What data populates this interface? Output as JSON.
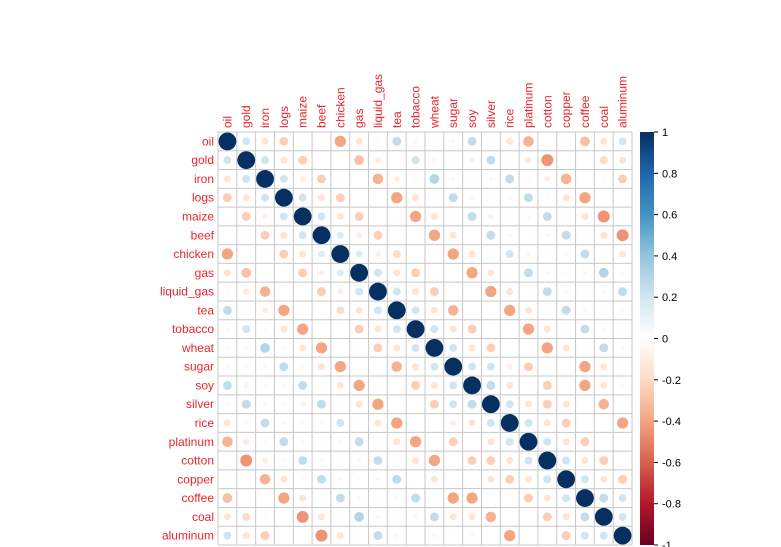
{
  "chart_data": {
    "type": "heatmap",
    "subtype": "correlation-circle",
    "title": "",
    "variables": [
      "oil",
      "gold",
      "iron",
      "logs",
      "maize",
      "beef",
      "chicken",
      "gas",
      "liquid_gas",
      "tea",
      "tobacco",
      "wheat",
      "sugar",
      "soy",
      "silver",
      "rice",
      "platinum",
      "cotton",
      "copper",
      "coffee",
      "coal",
      "aluminum"
    ],
    "upper_triangle": {
      "oil": {
        "gold": 0.2,
        "iron": -0.15,
        "logs": -0.25,
        "maize": 0.02,
        "beef": 0.0,
        "chicken": -0.4,
        "gas": -0.15,
        "liquid_gas": 0.03,
        "tea": 0.25,
        "tobacco": 0.05,
        "wheat": 0.03,
        "sugar": 0.05,
        "soy": 0.25,
        "silver": 0.03,
        "rice": -0.15,
        "platinum": -0.35,
        "cotton": 0.0,
        "copper": 0.02,
        "coffee": -0.3,
        "coal": -0.15,
        "aluminum": 0.2
      },
      "gold": {
        "iron": 0.2,
        "logs": -0.15,
        "maize": -0.25,
        "beef": 0.02,
        "chicken": 0.0,
        "gas": -0.3,
        "liquid_gas": -0.12,
        "tea": 0.02,
        "tobacco": 0.2,
        "wheat": 0.05,
        "sugar": 0.03,
        "soy": 0.08,
        "silver": 0.25,
        "rice": 0.03,
        "platinum": -0.12,
        "cotton": -0.45,
        "copper": 0.0,
        "coffee": 0.0,
        "coal": -0.2,
        "aluminum": -0.15
      },
      "iron": {
        "logs": 0.2,
        "maize": -0.1,
        "beef": -0.25,
        "chicken": 0.02,
        "gas": 0.0,
        "liquid_gas": -0.35,
        "tea": -0.1,
        "tobacco": 0.03,
        "wheat": 0.3,
        "sugar": 0.05,
        "soy": 0.03,
        "silver": 0.05,
        "rice": 0.25,
        "platinum": 0.03,
        "cotton": -0.1,
        "copper": -0.35,
        "coffee": 0.0,
        "coal": -0.03,
        "aluminum": -0.25
      },
      "logs": {
        "maize": 0.2,
        "beef": -0.15,
        "chicken": -0.25,
        "gas": 0.0,
        "liquid_gas": 0.0,
        "tea": -0.4,
        "tobacco": -0.15,
        "wheat": 0.03,
        "sugar": 0.25,
        "soy": 0.05,
        "silver": 0.03,
        "rice": 0.05,
        "platinum": 0.25,
        "cotton": 0.03,
        "copper": -0.15,
        "coffee": -0.4,
        "coal": 0.0,
        "aluminum": 0.0
      },
      "maize": {
        "beef": 0.2,
        "chicken": -0.15,
        "gas": -0.25,
        "liquid_gas": 0.0,
        "tea": 0.02,
        "tobacco": -0.4,
        "wheat": -0.15,
        "sugar": 0.03,
        "soy": 0.25,
        "silver": 0.08,
        "rice": 0.03,
        "platinum": 0.05,
        "cotton": 0.25,
        "copper": 0.03,
        "coffee": -0.15,
        "coal": -0.45,
        "aluminum": 0.0
      },
      "beef": {
        "chicken": 0.15,
        "gas": -0.1,
        "liquid_gas": -0.25,
        "tea": 0.0,
        "tobacco": 0.0,
        "wheat": -0.4,
        "sugar": -0.15,
        "soy": 0.02,
        "silver": 0.25,
        "rice": 0.05,
        "platinum": 0.02,
        "cotton": 0.05,
        "copper": 0.25,
        "coffee": 0.02,
        "coal": -0.15,
        "aluminum": -0.45
      },
      "chicken": {
        "gas": 0.15,
        "liquid_gas": -0.1,
        "tea": -0.2,
        "tobacco": 0.0,
        "wheat": 0.0,
        "sugar": -0.4,
        "soy": -0.15,
        "silver": 0.02,
        "rice": 0.2,
        "platinum": 0.05,
        "cotton": 0.02,
        "copper": 0.05,
        "coffee": 0.25,
        "coal": 0.02,
        "aluminum": -0.15
      },
      "gas": {
        "liquid_gas": 0.2,
        "tea": -0.15,
        "tobacco": -0.25,
        "wheat": 0.02,
        "sugar": 0.0,
        "soy": -0.4,
        "silver": -0.15,
        "rice": 0.02,
        "platinum": 0.25,
        "cotton": 0.05,
        "copper": 0.03,
        "coffee": 0.05,
        "coal": 0.3,
        "aluminum": 0.03
      },
      "liquid_gas": {
        "tea": 0.2,
        "tobacco": -0.15,
        "wheat": -0.25,
        "sugar": 0.0,
        "soy": 0.0,
        "silver": -0.4,
        "rice": -0.15,
        "platinum": 0.02,
        "cotton": 0.25,
        "copper": 0.05,
        "coffee": 0.02,
        "coal": 0.05,
        "aluminum": 0.25
      },
      "tea": {
        "tobacco": 0.2,
        "wheat": -0.15,
        "sugar": -0.35,
        "soy": 0.0,
        "silver": 0.0,
        "rice": -0.4,
        "platinum": -0.15,
        "cotton": 0.02,
        "copper": 0.25,
        "coffee": 0.05,
        "coal": 0.02,
        "aluminum": 0.05
      },
      "tobacco": {
        "wheat": 0.2,
        "sugar": -0.15,
        "soy": -0.25,
        "silver": 0.0,
        "rice": 0.0,
        "platinum": -0.4,
        "cotton": -0.15,
        "copper": 0.02,
        "coffee": 0.25,
        "coal": 0.05,
        "aluminum": 0.02
      },
      "wheat": {
        "sugar": 0.2,
        "soy": -0.15,
        "silver": -0.25,
        "rice": 0.0,
        "platinum": 0.0,
        "cotton": -0.4,
        "copper": -0.15,
        "coffee": 0.02,
        "coal": 0.25,
        "aluminum": 0.05
      },
      "sugar": {
        "soy": 0.2,
        "silver": 0.2,
        "rice": -0.1,
        "platinum": -0.25,
        "cotton": 0.0,
        "copper": 0.0,
        "coffee": -0.4,
        "coal": -0.15,
        "aluminum": 0.02
      },
      "soy": {
        "silver": 0.25,
        "rice": -0.15,
        "platinum": 0.02,
        "cotton": -0.25,
        "copper": 0.0,
        "coffee": -0.4,
        "coal": -0.15,
        "aluminum": 0.05
      },
      "silver": {
        "rice": 0.2,
        "platinum": -0.15,
        "cotton": -0.25,
        "copper": -0.15,
        "coffee": 0.0,
        "coal": -0.35,
        "aluminum": 0.0
      },
      "rice": {
        "platinum": 0.2,
        "cotton": -0.15,
        "copper": -0.25,
        "coffee": 0.0,
        "coal": 0.0,
        "aluminum": -0.4
      },
      "platinum": {
        "cotton": 0.2,
        "copper": -0.15,
        "coffee": -0.25,
        "coal": 0.0,
        "aluminum": 0.0
      },
      "cotton": {
        "copper": 0.2,
        "coffee": -0.15,
        "coal": -0.25,
        "aluminum": 0.0
      },
      "copper": {
        "coffee": 0.2,
        "coal": -0.15,
        "aluminum": -0.25
      },
      "coffee": {
        "coal": 0.25,
        "aluminum": 0.2
      },
      "coal": {
        "aluminum": 0.2
      }
    },
    "diagonal": 1,
    "colorbar": {
      "range": [
        -1,
        1
      ],
      "ticks": [
        "1",
        "0.8",
        "0.6",
        "0.4",
        "0.2",
        "0",
        "-0.2",
        "-0.4",
        "-0.6",
        "-0.8",
        "-1"
      ],
      "colors": {
        "neg_end": "#67001f",
        "neg_mid": "#d6604d",
        "zero": "#ffffff",
        "pos_mid": "#4393c3",
        "pos_end": "#053061"
      }
    },
    "label_color": "#e8262b",
    "grid": true,
    "legend_position": "right"
  }
}
